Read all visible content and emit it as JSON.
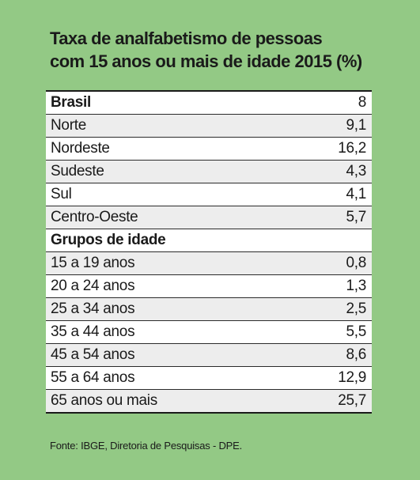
{
  "title": {
    "line1": "Taxa de analfabetismo de pessoas",
    "line2": "com 15 anos ou mais de idade 2015 (%)"
  },
  "rows": [
    {
      "label": "Brasil",
      "value": "8"
    },
    {
      "label": "Norte",
      "value": "9,1"
    },
    {
      "label": "Nordeste",
      "value": "16,2"
    },
    {
      "label": "Sudeste",
      "value": "4,3"
    },
    {
      "label": "Sul",
      "value": "4,1"
    },
    {
      "label": "Centro-Oeste",
      "value": "5,7"
    },
    {
      "label": "Grupos de idade",
      "value": ""
    },
    {
      "label": "15 a 19 anos",
      "value": "0,8"
    },
    {
      "label": "20 a 24 anos",
      "value": "1,3"
    },
    {
      "label": "25 a 34 anos",
      "value": "2,5"
    },
    {
      "label": "35 a 44 anos",
      "value": "5,5"
    },
    {
      "label": "45 a 54 anos",
      "value": "8,6"
    },
    {
      "label": "55 a 64 anos",
      "value": "12,9"
    },
    {
      "label": "65 anos ou mais",
      "value": "25,7"
    }
  ],
  "source": "Fonte: IBGE, Diretoria de Pesquisas - DPE.",
  "colors": {
    "background": "#93c985",
    "row_white": "#ffffff",
    "row_gray": "#ededed"
  }
}
